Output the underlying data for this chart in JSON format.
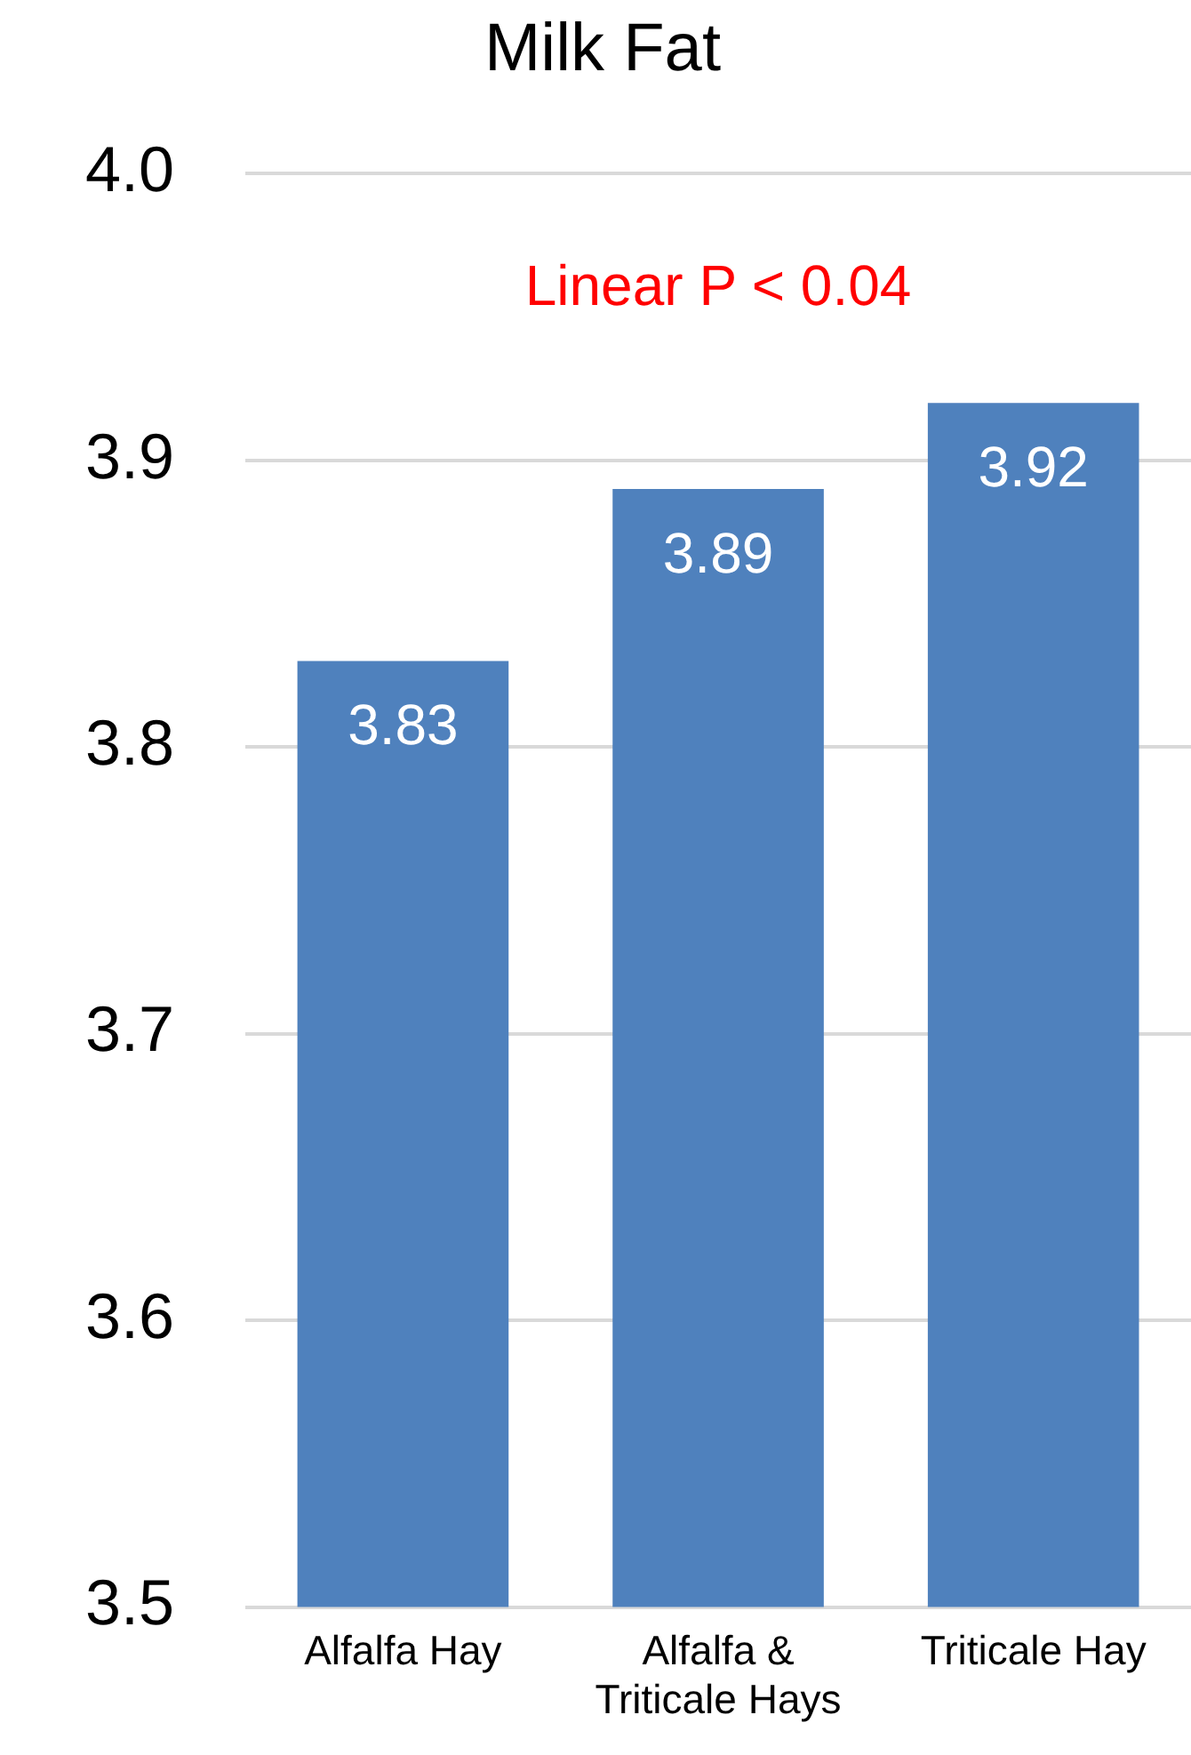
{
  "chart_data": {
    "type": "bar",
    "title": "Milk Fat",
    "categories": [
      "Alfalfa Hay",
      "Alfalfa & Triticale Hays",
      "Triticale Hay"
    ],
    "values": [
      3.83,
      3.89,
      3.92
    ],
    "color": "#4f81bd",
    "ylim": [
      3.5,
      4.0
    ],
    "yticks": [
      {
        "value": 3.5,
        "label": "3.5"
      },
      {
        "value": 3.6,
        "label": "3.6"
      },
      {
        "value": 3.7,
        "label": "3.7"
      },
      {
        "value": 3.8,
        "label": "3.8"
      },
      {
        "value": 3.9,
        "label": "3.9"
      },
      {
        "value": 4.0,
        "label": "4.0"
      }
    ],
    "grid": "y",
    "legend": false,
    "data_labels": true,
    "annotations": [
      "Linear P < 0.04"
    ]
  }
}
